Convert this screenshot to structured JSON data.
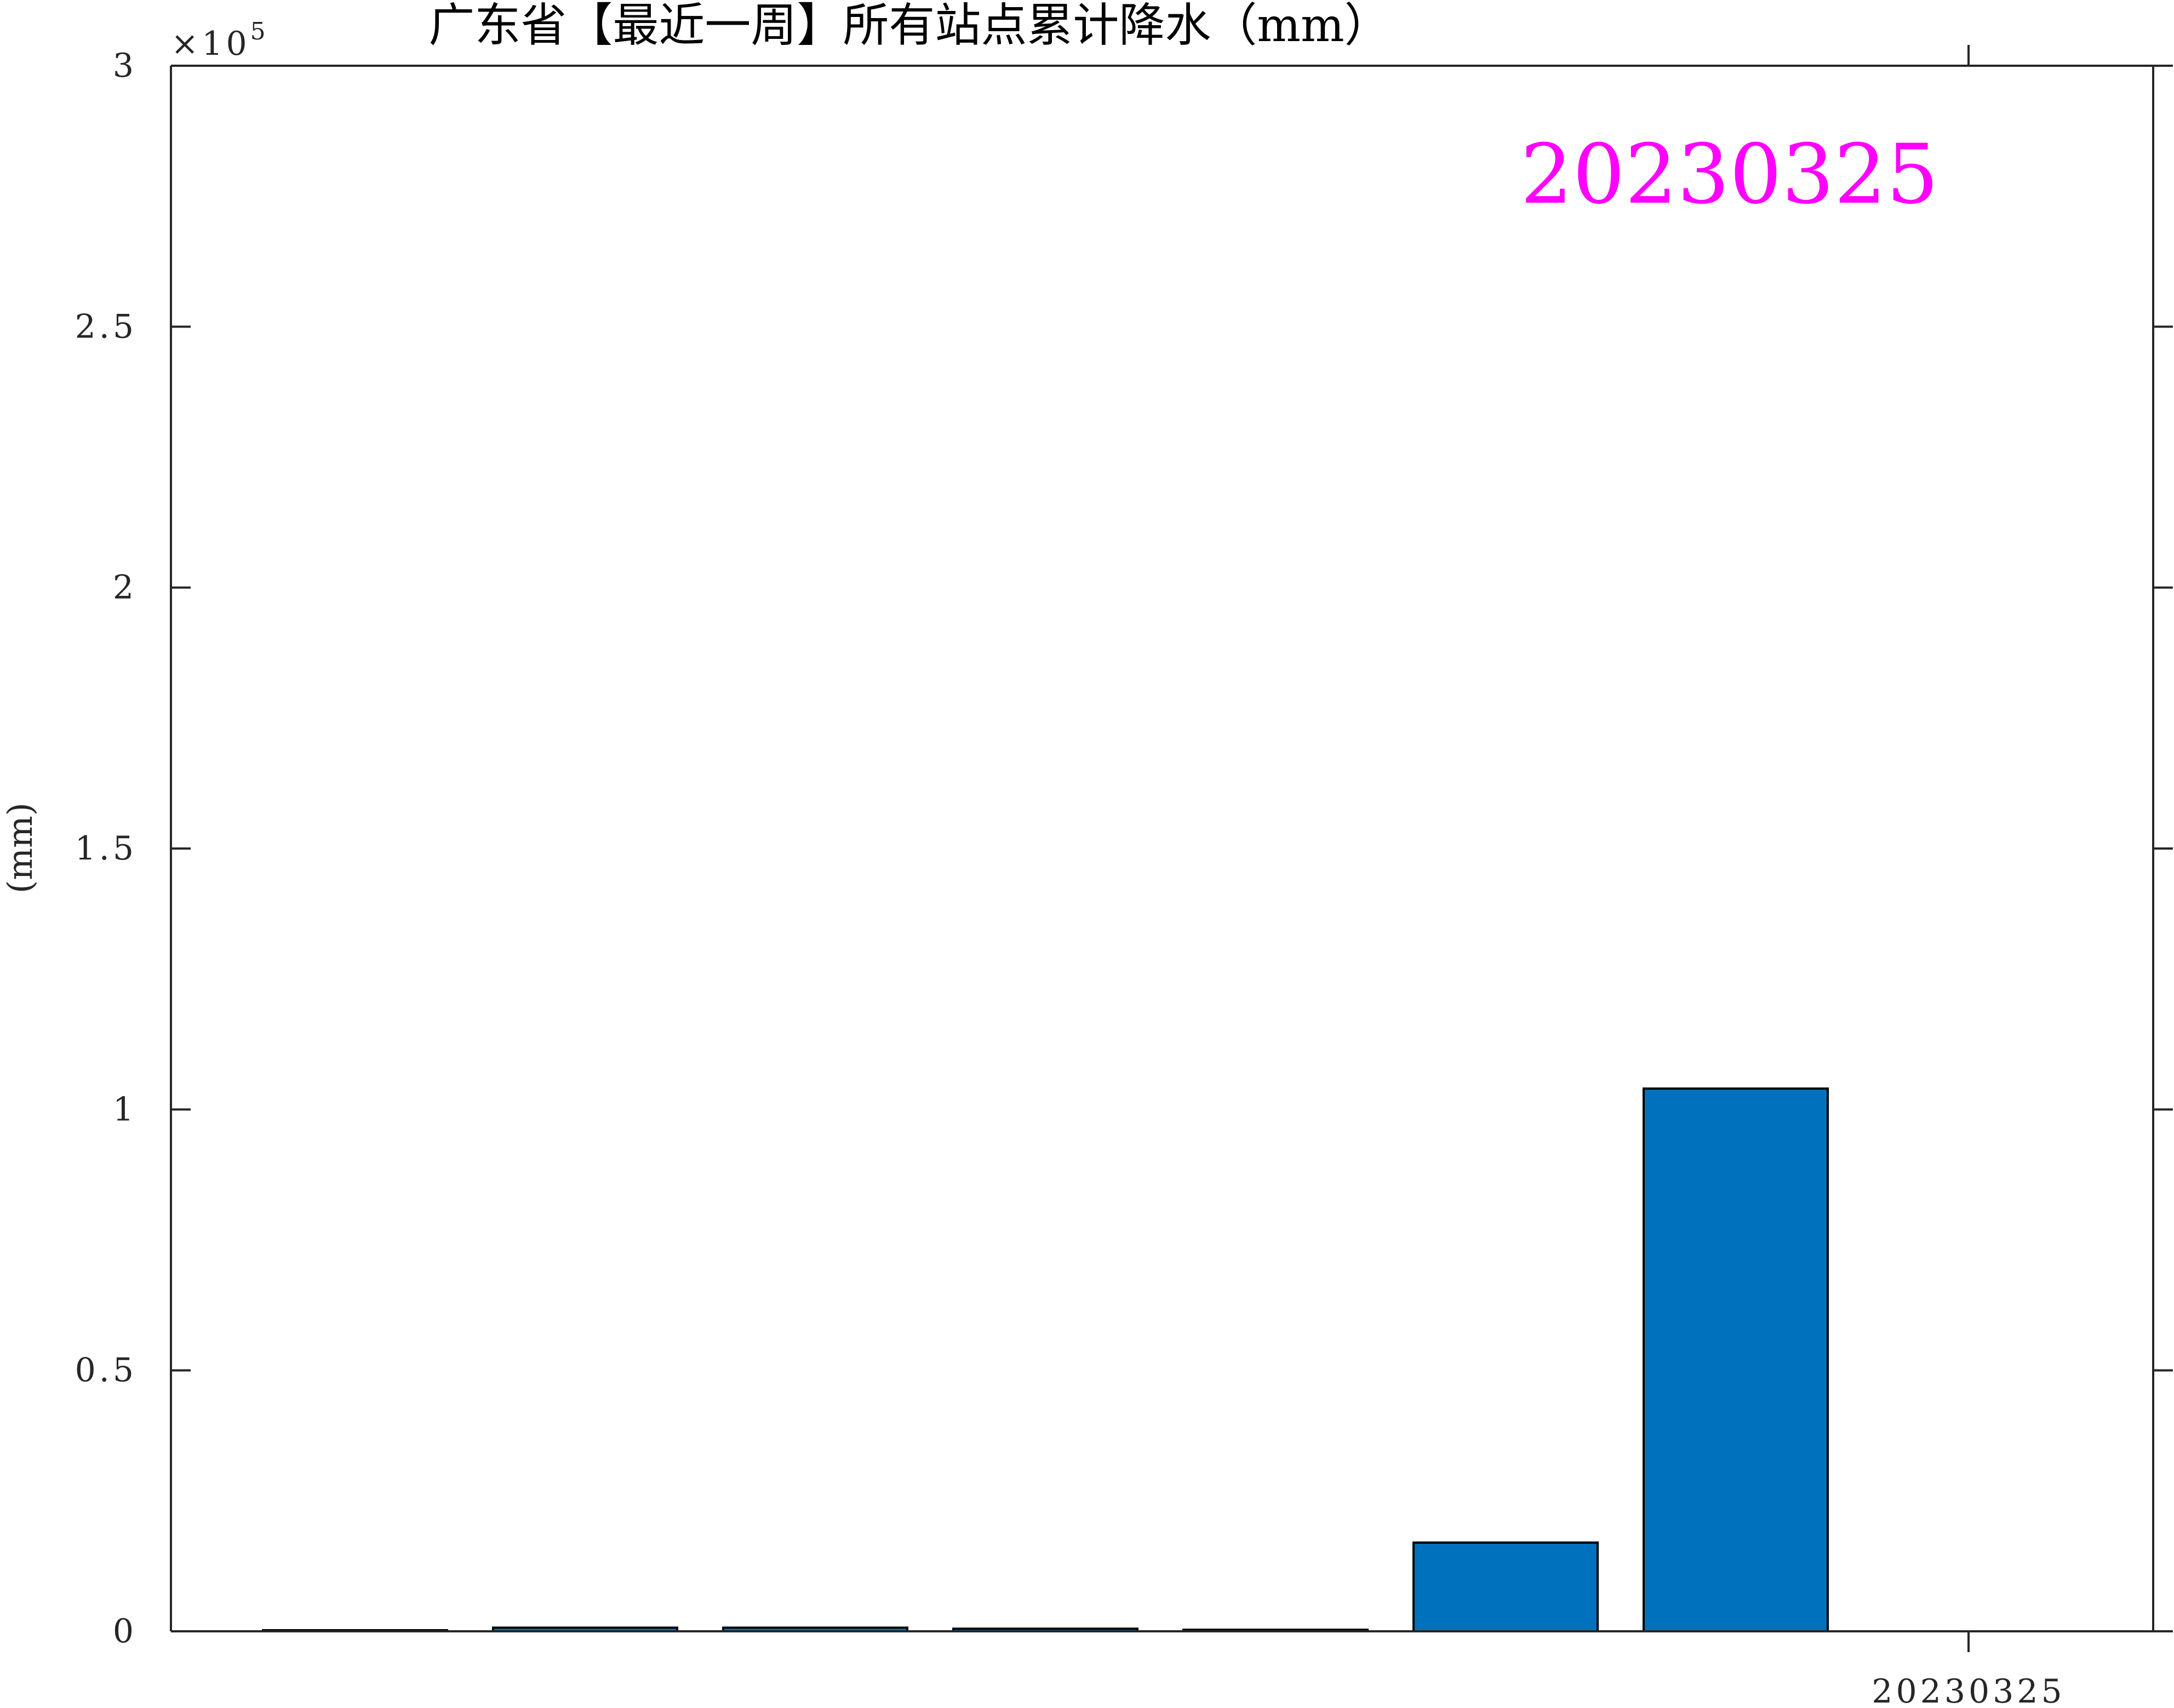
{
  "chart_data": {
    "type": "bar",
    "title": "广东省【最近一周】所有站点累计降水（mm）",
    "ylabel": "(mm)",
    "xlabel": "",
    "ylim": [
      0,
      300000
    ],
    "y_ticks": [
      0,
      50000,
      100000,
      150000,
      200000,
      250000,
      300000
    ],
    "y_tick_labels": [
      "0",
      "0.5",
      "1",
      "1.5",
      "2",
      "2.5",
      "3"
    ],
    "y_exponent_label": "×10",
    "y_exponent_power": "5",
    "x_tick_labels": [
      "20230325"
    ],
    "values": [
      0,
      700,
      700,
      500,
      300,
      17000,
      104000
    ],
    "bar_color": "#0072BD",
    "grid": false,
    "annotation": {
      "text": "20230325",
      "color": "#FF00FF"
    }
  }
}
